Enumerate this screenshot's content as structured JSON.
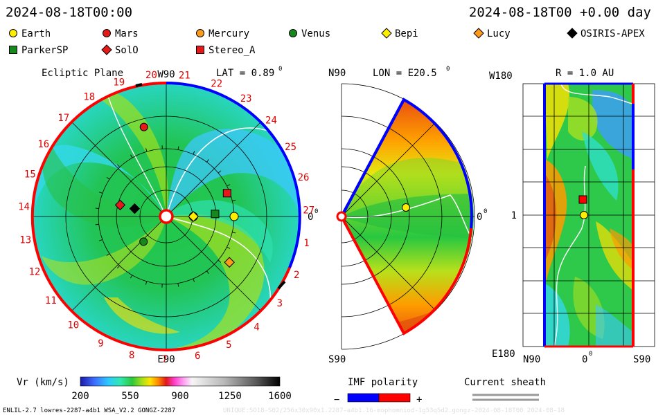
{
  "header": {
    "left_time": "2024-08-18T00:00",
    "right_time": "2024-08-18T00 +0.00 day"
  },
  "legend": [
    {
      "name": "Earth",
      "marker": "circle",
      "color": "#ffee00"
    },
    {
      "name": "Mars",
      "marker": "circle",
      "color": "#e41a1a"
    },
    {
      "name": "Mercury",
      "marker": "circle",
      "color": "#ff9a1a"
    },
    {
      "name": "Venus",
      "marker": "circle",
      "color": "#17891c"
    },
    {
      "name": "Bepi",
      "marker": "diamond",
      "color": "#ffee00"
    },
    {
      "name": "Lucy",
      "marker": "diamond",
      "color": "#ff9a1a"
    },
    {
      "name": "OSIRIS-APEX",
      "marker": "diamond",
      "color": "#000000"
    },
    {
      "name": "ParkerSP",
      "marker": "square",
      "color": "#17891c"
    },
    {
      "name": "SolO",
      "marker": "diamond",
      "color": "#e41a1a"
    },
    {
      "name": "Stereo_A",
      "marker": "square",
      "color": "#e41a1a"
    }
  ],
  "panels": {
    "ecliptic": {
      "title": "Ecliptic Plane",
      "lat_label": "LAT = 0.89",
      "deg_mark": "0",
      "top_label": "W90",
      "bottom_label": "E90",
      "right_label": "0",
      "sector_numbers": [
        "20",
        "21",
        "22",
        "23",
        "24",
        "25",
        "26",
        "27",
        "1",
        "2",
        "3",
        "4",
        "5",
        "6",
        "7",
        "8",
        "9",
        "10",
        "11",
        "12",
        "13",
        "14",
        "15",
        "16",
        "17",
        "18",
        "19"
      ]
    },
    "meridional": {
      "title": "LON = E20.5",
      "deg_mark": "0",
      "top_label": "N90",
      "bottom_label": "S90",
      "right_label": "0"
    },
    "radial": {
      "title": "R = 1.0 AU",
      "top_left_label": "W180",
      "bottom_left_label": "E180",
      "mid_left_label": "1",
      "x_labels": [
        "N90",
        "0",
        "S90"
      ]
    }
  },
  "colorbar": {
    "label": "Vr (km/s)",
    "ticks": [
      "200",
      "550",
      "900",
      "1250",
      "1600"
    ]
  },
  "imf": {
    "label": "IMF polarity",
    "minus": "−",
    "plus": "+",
    "colors": [
      "#0000ff",
      "#ff0000"
    ]
  },
  "sheath": {
    "label": "Current sheath"
  },
  "footer": {
    "left": "ENLIL-2.7 lowres-2287-a4b1 WSA_V2.2 GONGZ-2287",
    "right": "UNIQUE:SO18-S02/256x30x90x1.2287-a4b1.16-mophomniod-1g53q5d2.gongz-2024-08-18T00    2024-08-18"
  },
  "chart_data": {
    "type": "heatmap",
    "quantity": "Vr (km/s)",
    "color_range": [
      200,
      1600
    ],
    "bodies_ecliptic_position": [
      {
        "name": "Earth",
        "r_au": 1.0,
        "lon_deg": 0
      },
      {
        "name": "Mercury",
        "r_au": 0.4,
        "lon_deg": 0
      },
      {
        "name": "Venus",
        "r_au": 0.5,
        "lon_deg": 228
      },
      {
        "name": "Mars",
        "r_au": 1.36,
        "lon_deg": 104
      },
      {
        "name": "Bepi",
        "r_au": 0.4,
        "lon_deg": 0
      },
      {
        "name": "Lucy",
        "r_au": 1.15,
        "lon_deg": 324
      },
      {
        "name": "OSIRIS-APEX",
        "r_au": 0.48,
        "lon_deg": 166
      },
      {
        "name": "ParkerSP",
        "r_au": 0.72,
        "lon_deg": 3
      },
      {
        "name": "SolO",
        "r_au": 0.7,
        "lon_deg": 166
      },
      {
        "name": "Stereo_A",
        "r_au": 0.96,
        "lon_deg": 21
      }
    ]
  }
}
